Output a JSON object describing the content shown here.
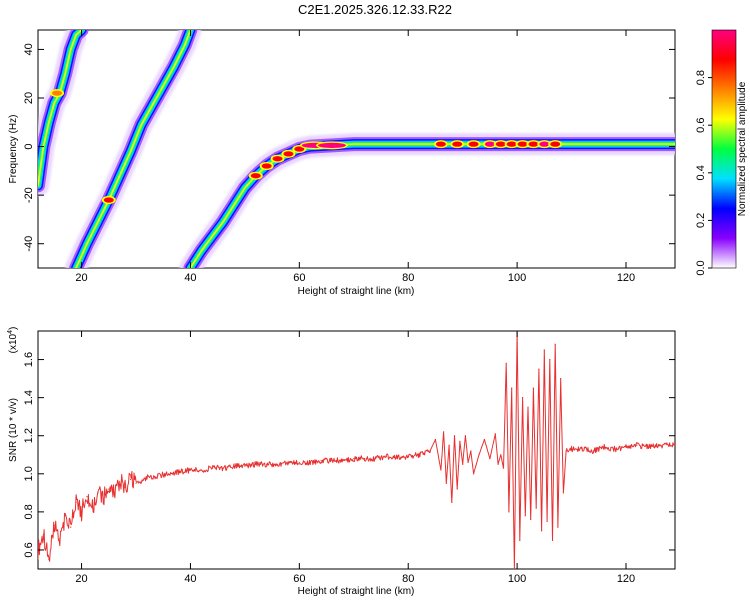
{
  "title": "C2E1.2025.326.12.33.R22",
  "chart_data": [
    {
      "type": "heatmap",
      "name": "spectrogram",
      "xlabel": "Height of straight line (km)",
      "ylabel": "Frequency (Hz)",
      "xlim": [
        12,
        129
      ],
      "ylim": [
        -50,
        48
      ],
      "xticks": [
        20,
        40,
        60,
        80,
        100,
        120
      ],
      "yticks": [
        -40,
        -20,
        0,
        20,
        40
      ],
      "colorbar": {
        "label": "Normalized spectral amplitude",
        "range": [
          0,
          1
        ],
        "ticks": [
          "0.0",
          "0.2",
          "0.4",
          "0.6",
          "0.8"
        ],
        "tick_values": [
          0,
          0.2,
          0.4,
          0.6,
          0.8
        ],
        "colors": [
          "#ffffff",
          "#8800ff",
          "#0000ff",
          "#00e0ff",
          "#00ff40",
          "#ffff00",
          "#ff8000",
          "#ff0000",
          "#ff0080"
        ]
      },
      "traces": [
        {
          "name": "steep-trace",
          "x": [
            12,
            13,
            14,
            15,
            16,
            17,
            18,
            19,
            20
          ],
          "y": [
            -16,
            0,
            10,
            18,
            22,
            30,
            40,
            46,
            48
          ]
        },
        {
          "name": "middle-trace",
          "x": [
            19,
            21,
            23,
            25,
            27,
            29,
            31,
            33,
            35,
            37,
            39,
            40
          ],
          "y": [
            -50,
            -40,
            -31,
            -22,
            -12,
            -2,
            9,
            17,
            25,
            33,
            42,
            48
          ]
        },
        {
          "name": "carrier-trace",
          "x": [
            40,
            42,
            44,
            46,
            48,
            50,
            52,
            54,
            56,
            58,
            60,
            62,
            66,
            70,
            80,
            90,
            100,
            110,
            120,
            129
          ],
          "y": [
            -50,
            -43,
            -37,
            -31,
            -24,
            -17,
            -12,
            -8,
            -5,
            -3,
            -1,
            0,
            0.5,
            1,
            1,
            1,
            1,
            1,
            1,
            1
          ]
        }
      ],
      "hotspots": [
        {
          "x": 25,
          "y": -22,
          "amp": 0.9
        },
        {
          "x": 15.5,
          "y": 22,
          "amp": 0.5
        },
        {
          "x": 52,
          "y": -12,
          "amp": 0.8
        },
        {
          "x": 54,
          "y": -8,
          "amp": 0.85
        },
        {
          "x": 56,
          "y": -5,
          "amp": 0.9
        },
        {
          "x": 58,
          "y": -3,
          "amp": 0.95
        },
        {
          "x": 60,
          "y": -1,
          "amp": 0.95
        },
        {
          "x": 63,
          "y": 0.5,
          "amp": 1.0
        },
        {
          "x": 66,
          "y": 0.5,
          "amp": 1.0
        },
        {
          "x": 86,
          "y": 1,
          "amp": 0.85
        },
        {
          "x": 89,
          "y": 1,
          "amp": 0.7
        },
        {
          "x": 92,
          "y": 1,
          "amp": 0.85
        },
        {
          "x": 95,
          "y": 1,
          "amp": 1.0
        },
        {
          "x": 97,
          "y": 1,
          "amp": 0.9
        },
        {
          "x": 99,
          "y": 1,
          "amp": 0.8
        },
        {
          "x": 101,
          "y": 1,
          "amp": 0.85
        },
        {
          "x": 103,
          "y": 1,
          "amp": 0.9
        },
        {
          "x": 105,
          "y": 1,
          "amp": 1.0
        },
        {
          "x": 107,
          "y": 1,
          "amp": 0.9
        }
      ]
    },
    {
      "type": "line",
      "name": "snr",
      "xlabel": "Height of straight line (km)",
      "ylabel": "SNR (10 * v/v)",
      "scale_label": "(x10",
      "scale_exp": "4",
      "xlim": [
        12,
        129
      ],
      "ylim": [
        0.5,
        1.75
      ],
      "xticks": [
        20,
        40,
        60,
        80,
        100,
        120
      ],
      "yticks": [
        0.6,
        0.8,
        1.0,
        1.2,
        1.4,
        1.6
      ],
      "ytick_labels": [
        "0.6",
        "0.8",
        "1.0",
        "1.2",
        "1.4",
        "1.6"
      ],
      "color": "#e83030",
      "series": [
        {
          "name": "SNR",
          "x": [
            12,
            13,
            14,
            15,
            16,
            17,
            18,
            19,
            20,
            21,
            22,
            23,
            24,
            25,
            26,
            27,
            28,
            29,
            30,
            32,
            34,
            36,
            38,
            40,
            42,
            44,
            46,
            48,
            50,
            52,
            54,
            56,
            58,
            60,
            62,
            64,
            66,
            68,
            70,
            72,
            74,
            76,
            78,
            80,
            82,
            84,
            85,
            86,
            86.5,
            87,
            87.5,
            88,
            88.5,
            89,
            89.5,
            90,
            90.5,
            91,
            91.5,
            92,
            93,
            94,
            95,
            96,
            96.5,
            97,
            97.5,
            98,
            98.5,
            99,
            99.5,
            100,
            100.5,
            101,
            101.5,
            102,
            102.5,
            103,
            103.5,
            104,
            104.5,
            105,
            105.5,
            106,
            106.5,
            107,
            107.5,
            108,
            108.5,
            109,
            110,
            112,
            114,
            116,
            118,
            120,
            122,
            124,
            126,
            129
          ],
          "y": [
            0.6,
            0.68,
            0.55,
            0.73,
            0.66,
            0.78,
            0.72,
            0.85,
            0.8,
            0.88,
            0.82,
            0.9,
            0.87,
            0.92,
            0.9,
            0.96,
            0.93,
            0.97,
            0.95,
            0.98,
            0.99,
            1.0,
            1.01,
            1.02,
            1.02,
            1.03,
            1.03,
            1.04,
            1.04,
            1.05,
            1.05,
            1.05,
            1.06,
            1.06,
            1.06,
            1.07,
            1.07,
            1.07,
            1.08,
            1.08,
            1.08,
            1.09,
            1.09,
            1.09,
            1.1,
            1.12,
            1.18,
            1.02,
            1.22,
            0.95,
            1.15,
            0.85,
            1.2,
            0.92,
            1.17,
            1.05,
            1.2,
            1.06,
            1.12,
            1.0,
            1.1,
            1.18,
            1.08,
            1.21,
            1.05,
            1.1,
            1.03,
            1.58,
            0.8,
            1.45,
            0.5,
            1.75,
            0.65,
            1.4,
            0.78,
            1.35,
            0.76,
            1.45,
            0.82,
            1.55,
            0.7,
            1.65,
            0.75,
            1.6,
            0.65,
            1.68,
            0.72,
            1.5,
            0.9,
            1.12,
            1.13,
            1.13,
            1.12,
            1.14,
            1.13,
            1.14,
            1.15,
            1.14,
            1.15,
            1.15
          ]
        }
      ]
    }
  ]
}
